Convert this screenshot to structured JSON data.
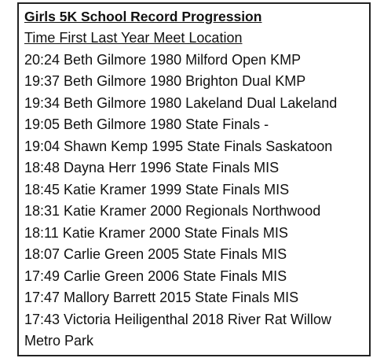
{
  "title": "Girls 5K School Record Progression",
  "header": "Time First Last Year Meet Location",
  "rows": [
    "20:24 Beth Gilmore 1980 Milford Open KMP",
    "19:37 Beth Gilmore 1980 Brighton Dual KMP",
    "19:34 Beth Gilmore 1980 Lakeland Dual Lakeland",
    "19:05 Beth Gilmore 1980 State Finals -",
    "19:04 Shawn Kemp 1995 State Finals Saskatoon",
    "18:48 Dayna Herr 1996 State Finals MIS",
    "18:45 Katie Kramer 1999 State Finals MIS",
    "18:31 Katie Kramer 2000 Regionals Northwood",
    "18:11 Katie Kramer 2000 State Finals MIS",
    "18:07 Carlie Green 2005 State Finals MIS",
    "17:49 Carlie Green 2006 State Finals MIS",
    "17:47 Mallory Barrett 2015 State Finals MIS",
    "17:43 Victoria Heiligenthal 2018 River Rat Willow Metro Park"
  ]
}
